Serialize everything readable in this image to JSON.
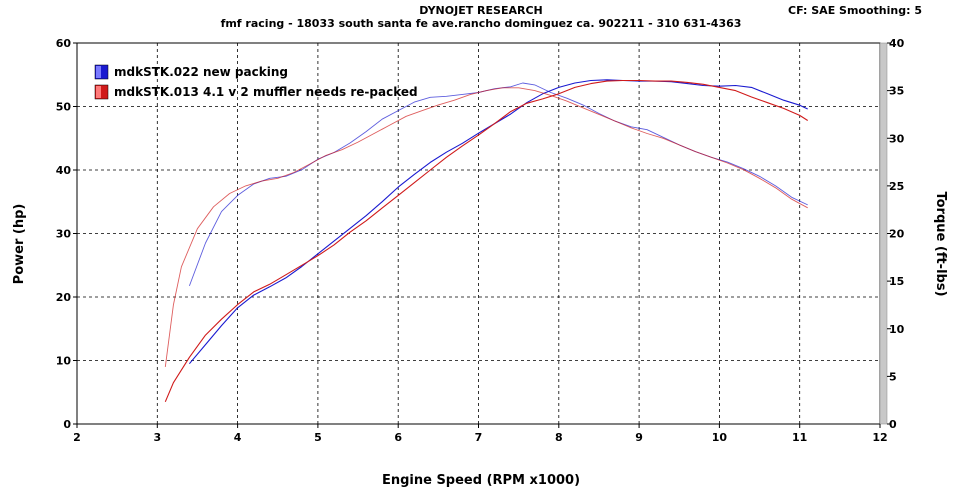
{
  "header": {
    "title": "DYNOJET RESEARCH",
    "subtitle": "fmf racing - 18033 south santa fe ave.rancho dominguez ca. 902211 - 310 631-4363",
    "settings": "CF: SAE  Smoothing: 5"
  },
  "chart_data": {
    "type": "line",
    "xlabel": "Engine Speed (RPM x1000)",
    "ylabel": "Power (hp)",
    "y2label": "Torque (ft-lbs)",
    "xlim": [
      2,
      12
    ],
    "ylim": [
      0,
      60
    ],
    "y2lim": [
      0,
      40
    ],
    "x_ticks": [
      "2",
      "3",
      "4",
      "5",
      "6",
      "7",
      "8",
      "9",
      "10",
      "11",
      "12"
    ],
    "y_ticks": [
      "0",
      "10",
      "20",
      "30",
      "40",
      "50",
      "60"
    ],
    "y2_ticks": [
      "0",
      "5",
      "10",
      "15",
      "20",
      "25",
      "30",
      "35",
      "40"
    ],
    "grid": true,
    "legend_position": "top-left",
    "series": [
      {
        "name": "mdkSTK.022 new packing",
        "color": "#1a1ad0",
        "power": {
          "x": [
            3.4,
            3.6,
            3.8,
            4.0,
            4.2,
            4.4,
            4.6,
            4.8,
            5.0,
            5.2,
            5.4,
            5.6,
            5.8,
            6.0,
            6.2,
            6.4,
            6.6,
            6.8,
            7.0,
            7.2,
            7.4,
            7.6,
            7.8,
            8.0,
            8.2,
            8.4,
            8.6,
            8.8,
            9.0,
            9.2,
            9.4,
            9.6,
            9.8,
            10.0,
            10.2,
            10.4,
            10.6,
            10.8,
            11.0,
            11.1
          ],
          "y": [
            9.5,
            12.5,
            15.5,
            18.3,
            20.3,
            21.6,
            23.0,
            24.8,
            26.8,
            28.8,
            30.8,
            32.8,
            35.0,
            37.3,
            39.3,
            41.2,
            42.8,
            44.2,
            45.8,
            47.3,
            48.8,
            50.6,
            52.0,
            53.0,
            53.7,
            54.1,
            54.2,
            54.1,
            54.0,
            54.0,
            53.9,
            53.6,
            53.3,
            53.2,
            53.3,
            53.0,
            52.0,
            51.0,
            50.2,
            49.6
          ]
        },
        "torque": {
          "x": [
            3.4,
            3.6,
            3.8,
            4.0,
            4.2,
            4.4,
            4.6,
            4.8,
            5.0,
            5.2,
            5.4,
            5.6,
            5.8,
            6.0,
            6.2,
            6.4,
            6.6,
            6.8,
            7.0,
            7.2,
            7.4,
            7.55,
            7.7,
            7.9,
            8.1,
            8.3,
            8.5,
            8.7,
            8.9,
            9.1,
            9.3,
            9.5,
            9.7,
            9.9,
            10.1,
            10.3,
            10.5,
            10.7,
            10.9,
            11.1
          ],
          "y": [
            14.5,
            19.0,
            22.3,
            24.0,
            25.2,
            25.8,
            26.0,
            26.7,
            27.8,
            28.5,
            29.5,
            30.7,
            32.0,
            32.9,
            33.8,
            34.3,
            34.4,
            34.6,
            34.8,
            35.2,
            35.4,
            35.8,
            35.6,
            34.8,
            34.2,
            33.5,
            32.6,
            31.8,
            31.2,
            30.9,
            30.1,
            29.3,
            28.6,
            28.0,
            27.5,
            26.8,
            26.0,
            25.0,
            23.8,
            23.0
          ]
        }
      },
      {
        "name": "mdkSTK.013 4.1 v 2 muffler needs re-packed",
        "color": "#d01a1a",
        "power": {
          "x": [
            3.1,
            3.2,
            3.4,
            3.6,
            3.8,
            4.0,
            4.2,
            4.4,
            4.6,
            4.8,
            5.0,
            5.2,
            5.4,
            5.6,
            5.8,
            6.0,
            6.2,
            6.4,
            6.6,
            6.8,
            7.0,
            7.2,
            7.4,
            7.6,
            7.8,
            8.0,
            8.2,
            8.4,
            8.6,
            8.8,
            9.0,
            9.2,
            9.4,
            9.6,
            9.8,
            10.0,
            10.2,
            10.4,
            10.6,
            10.8,
            11.0,
            11.1
          ],
          "y": [
            3.5,
            6.5,
            10.5,
            14.0,
            16.5,
            18.8,
            20.8,
            22.0,
            23.5,
            25.0,
            26.5,
            28.2,
            30.2,
            32.0,
            34.0,
            36.0,
            38.0,
            40.0,
            42.0,
            43.8,
            45.5,
            47.3,
            49.2,
            50.5,
            51.2,
            52.0,
            53.0,
            53.6,
            54.0,
            54.1,
            54.1,
            54.0,
            54.0,
            53.8,
            53.5,
            53.0,
            52.5,
            51.5,
            50.6,
            49.7,
            48.6,
            47.8
          ]
        },
        "torque": {
          "x": [
            3.1,
            3.2,
            3.3,
            3.5,
            3.7,
            3.9,
            4.1,
            4.3,
            4.5,
            4.7,
            4.9,
            5.1,
            5.3,
            5.5,
            5.7,
            5.9,
            6.1,
            6.3,
            6.5,
            6.7,
            6.9,
            7.1,
            7.3,
            7.5,
            7.7,
            7.9,
            8.1,
            8.3,
            8.5,
            8.7,
            8.9,
            9.1,
            9.3,
            9.5,
            9.7,
            9.9,
            10.1,
            10.3,
            10.5,
            10.7,
            10.9,
            11.1
          ],
          "y": [
            6.0,
            12.5,
            16.5,
            20.5,
            22.8,
            24.2,
            25.0,
            25.5,
            25.8,
            26.4,
            27.3,
            28.2,
            28.8,
            29.6,
            30.5,
            31.4,
            32.3,
            32.9,
            33.5,
            34.0,
            34.6,
            35.0,
            35.3,
            35.3,
            35.0,
            34.5,
            33.9,
            33.2,
            32.5,
            31.8,
            31.1,
            30.5,
            30.0,
            29.3,
            28.6,
            28.0,
            27.4,
            26.7,
            25.8,
            24.8,
            23.6,
            22.7
          ]
        }
      }
    ]
  }
}
